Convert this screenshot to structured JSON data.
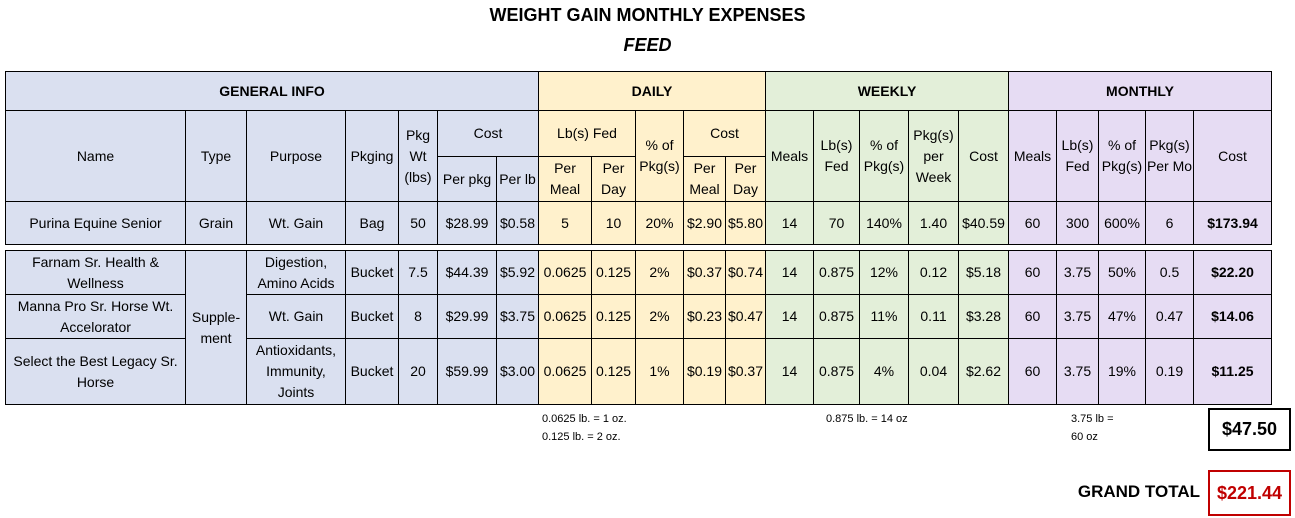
{
  "title": "WEIGHT GAIN MONTHLY EXPENSES",
  "subtitle": "FEED",
  "sections": {
    "general": "GENERAL INFO",
    "daily": "DAILY",
    "weekly": "WEEKLY",
    "monthly": "MONTHLY"
  },
  "headers": {
    "name": "Name",
    "type": "Type",
    "purpose": "Purpose",
    "pkging": "Pkging",
    "pkg_wt": "Pkg Wt (lbs)",
    "cost": "Cost",
    "per_pkg": "Per pkg",
    "per_lb": "Per lb",
    "lbs_fed": "Lb(s) Fed",
    "per_meal": "Per Meal",
    "per_day": "Per Day",
    "pct_pkg": "% of Pkg(s)",
    "meals": "Meals",
    "pkgs_per_week": "Pkg(s) per Week",
    "pkgs_per_mo": "Pkg(s) Per Mo"
  },
  "rows": [
    {
      "name": "Purina Equine Senior",
      "type": "Grain",
      "purpose": "Wt. Gain",
      "pkging": "Bag",
      "pkg_wt": "50",
      "cost_pkg": "$28.99",
      "cost_lb": "$0.58",
      "d_meal": "5",
      "d_day": "10",
      "d_pct": "20%",
      "d_cost_meal": "$2.90",
      "d_cost_day": "$5.80",
      "w_meals": "14",
      "w_lbs": "70",
      "w_pct": "140%",
      "w_pkgs": "1.40",
      "w_cost": "$40.59",
      "m_meals": "60",
      "m_lbs": "300",
      "m_pct": "600%",
      "m_pkgs": "6",
      "m_cost": "$173.94"
    },
    {
      "name": "Farnam Sr. Health & Wellness",
      "type": "Supple-ment",
      "purpose": "Digestion, Amino Acids",
      "pkging": "Bucket",
      "pkg_wt": "7.5",
      "cost_pkg": "$44.39",
      "cost_lb": "$5.92",
      "d_meal": "0.0625",
      "d_day": "0.125",
      "d_pct": "2%",
      "d_cost_meal": "$0.37",
      "d_cost_day": "$0.74",
      "w_meals": "14",
      "w_lbs": "0.875",
      "w_pct": "12%",
      "w_pkgs": "0.12",
      "w_cost": "$5.18",
      "m_meals": "60",
      "m_lbs": "3.75",
      "m_pct": "50%",
      "m_pkgs": "0.5",
      "m_cost": "$22.20"
    },
    {
      "name": "Manna Pro Sr. Horse Wt. Accelorator",
      "purpose": "Wt. Gain",
      "pkging": "Bucket",
      "pkg_wt": "8",
      "cost_pkg": "$29.99",
      "cost_lb": "$3.75",
      "d_meal": "0.0625",
      "d_day": "0.125",
      "d_pct": "2%",
      "d_cost_meal": "$0.23",
      "d_cost_day": "$0.47",
      "w_meals": "14",
      "w_lbs": "0.875",
      "w_pct": "11%",
      "w_pkgs": "0.11",
      "w_cost": "$3.28",
      "m_meals": "60",
      "m_lbs": "3.75",
      "m_pct": "47%",
      "m_pkgs": "0.47",
      "m_cost": "$14.06"
    },
    {
      "name": "Select the Best Legacy Sr. Horse",
      "purpose": "Antioxidants, Immunity, Joints",
      "pkging": "Bucket",
      "pkg_wt": "20",
      "cost_pkg": "$59.99",
      "cost_lb": "$3.00",
      "d_meal": "0.0625",
      "d_day": "0.125",
      "d_pct": "1%",
      "d_cost_meal": "$0.19",
      "d_cost_day": "$0.37",
      "w_meals": "14",
      "w_lbs": "0.875",
      "w_pct": "4%",
      "w_pkgs": "0.04",
      "w_cost": "$2.62",
      "m_meals": "60",
      "m_lbs": "3.75",
      "m_pct": "19%",
      "m_pkgs": "0.19",
      "m_cost": "$11.25"
    }
  ],
  "notes": {
    "daily_1": "0.0625 lb. = 1 oz.",
    "daily_2": "0.125 lb. = 2 oz.",
    "weekly": "0.875 lb. = 14 oz",
    "monthly_1": "3.75 lb =",
    "monthly_2": "60 oz"
  },
  "supplement_subtotal": "$47.50",
  "grand_total_label": "GRAND TOTAL",
  "grand_total": "$221.44",
  "colors": {
    "general": "#dae0f0",
    "daily": "#fff1cc",
    "weekly": "#e3efd9",
    "monthly": "#e6dcf3",
    "grand_total": "#c00000"
  }
}
